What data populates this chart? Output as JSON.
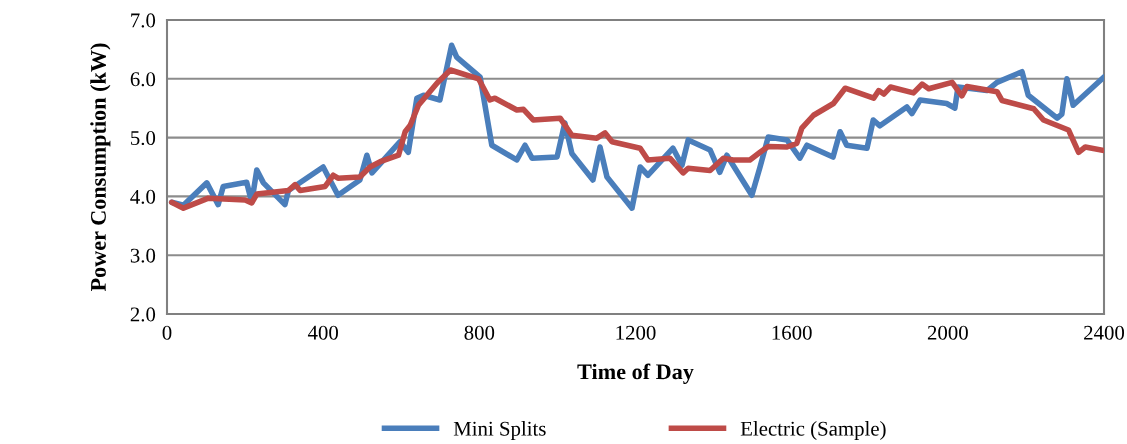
{
  "chart_data": {
    "type": "line",
    "xlabel": "Time of Day",
    "ylabel": "Power Consumption (kW)",
    "xlim": [
      0,
      2400
    ],
    "xticks": [
      0,
      400,
      800,
      1200,
      1600,
      2000,
      2400
    ],
    "ylim": [
      2.0,
      7.0
    ],
    "yticks": [
      {
        "value": 2,
        "label": "2.0"
      },
      {
        "value": 3,
        "label": "3.0"
      },
      {
        "value": 4,
        "label": "4.0"
      },
      {
        "value": 5,
        "label": "5.0"
      },
      {
        "value": 6,
        "label": "6.0"
      },
      {
        "value": 7,
        "label": "7.0"
      }
    ],
    "grid": "y",
    "legend": "bottom",
    "marker": "none",
    "line_style": "solid",
    "series": [
      {
        "name": "Mini Splits",
        "color": "#4a7ebb",
        "x": [
          12,
          42,
          102,
          131,
          144,
          204,
          217,
          230,
          247,
          302,
          311,
          400,
          438,
          494,
          512,
          525,
          597,
          618,
          640,
          657,
          699,
          729,
          742,
          802,
          832,
          896,
          917,
          935,
          999,
          1019,
          1037,
          1091,
          1109,
          1127,
          1191,
          1212,
          1232,
          1296,
          1319,
          1335,
          1391,
          1416,
          1434,
          1498,
          1519,
          1540,
          1588,
          1621,
          1639,
          1706,
          1724,
          1741,
          1793,
          1809,
          1826,
          1895,
          1908,
          1929,
          1997,
          2018,
          2026,
          2100,
          2126,
          2190,
          2206,
          2280,
          2292,
          2305,
          2321,
          2400
        ],
        "values": [
          3.9,
          3.85,
          4.23,
          3.86,
          4.17,
          4.24,
          3.9,
          4.45,
          4.23,
          3.86,
          4.1,
          4.5,
          4.02,
          4.28,
          4.7,
          4.4,
          4.93,
          4.75,
          5.67,
          5.72,
          5.64,
          6.57,
          6.37,
          6.03,
          4.87,
          4.62,
          4.87,
          4.65,
          4.67,
          5.25,
          4.73,
          4.28,
          4.84,
          4.33,
          3.8,
          4.5,
          4.36,
          4.82,
          4.53,
          4.96,
          4.79,
          4.41,
          4.7,
          4.02,
          4.5,
          5.01,
          4.96,
          4.65,
          4.87,
          4.67,
          5.1,
          4.87,
          4.82,
          5.3,
          5.2,
          5.52,
          5.41,
          5.64,
          5.58,
          5.5,
          5.86,
          5.8,
          5.94,
          6.12,
          5.72,
          5.33,
          5.4,
          6.0,
          5.55,
          6.03
        ]
      },
      {
        "name": "Electric (Sample)",
        "color": "#be4b48",
        "x": [
          12,
          42,
          106,
          200,
          217,
          230,
          311,
          328,
          341,
          405,
          426,
          438,
          494,
          520,
          546,
          593,
          610,
          623,
          644,
          692,
          726,
          798,
          827,
          840,
          896,
          913,
          938,
          1007,
          1037,
          1101,
          1122,
          1140,
          1212,
          1232,
          1288,
          1322,
          1335,
          1391,
          1425,
          1450,
          1493,
          1519,
          1540,
          1588,
          1613,
          1626,
          1656,
          1707,
          1737,
          1810,
          1823,
          1836,
          1853,
          1912,
          1934,
          1951,
          2011,
          2036,
          2049,
          2126,
          2139,
          2220,
          2245,
          2309,
          2335,
          2352,
          2400
        ],
        "values": [
          3.9,
          3.8,
          3.97,
          3.94,
          3.89,
          4.04,
          4.1,
          4.2,
          4.1,
          4.17,
          4.36,
          4.31,
          4.33,
          4.5,
          4.59,
          4.7,
          5.1,
          5.21,
          5.55,
          5.93,
          6.15,
          6.0,
          5.64,
          5.67,
          5.47,
          5.48,
          5.3,
          5.33,
          5.04,
          4.99,
          5.08,
          4.93,
          4.82,
          4.62,
          4.65,
          4.4,
          4.48,
          4.44,
          4.65,
          4.62,
          4.62,
          4.75,
          4.85,
          4.84,
          4.9,
          5.16,
          5.38,
          5.58,
          5.84,
          5.67,
          5.8,
          5.74,
          5.86,
          5.76,
          5.91,
          5.83,
          5.94,
          5.71,
          5.87,
          5.78,
          5.63,
          5.49,
          5.3,
          5.13,
          4.75,
          4.84,
          4.78
        ]
      }
    ]
  }
}
